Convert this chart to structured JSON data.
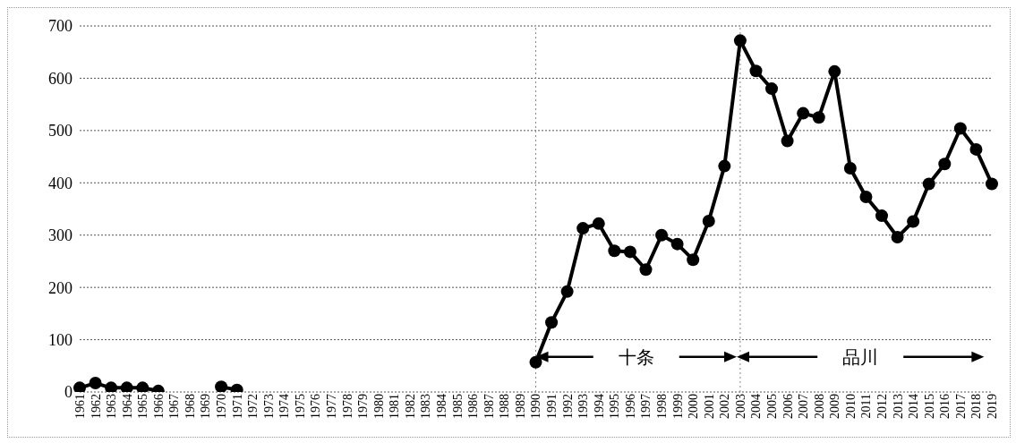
{
  "chart_data": {
    "type": "line",
    "categories": [
      "1961",
      "1962",
      "1963",
      "1964",
      "1965",
      "1966",
      "1967",
      "1968",
      "1969",
      "1970",
      "1971",
      "1972",
      "1973",
      "1974",
      "1975",
      "1976",
      "1977",
      "1978",
      "1979",
      "1980",
      "1981",
      "1982",
      "1983",
      "1984",
      "1985",
      "1986",
      "1987",
      "1988",
      "1989",
      "1990",
      "1991",
      "1992",
      "1993",
      "1994",
      "1995",
      "1996",
      "1997",
      "1998",
      "1999",
      "2000",
      "2001",
      "2002",
      "2003",
      "2004",
      "2005",
      "2006",
      "2007",
      "2008",
      "2009",
      "2010",
      "2011",
      "2012",
      "2013",
      "2014",
      "2015",
      "2016",
      "2017",
      "2018",
      "2019"
    ],
    "series": [
      {
        "color": "#000000",
        "values": [
          8,
          17,
          8,
          8,
          8,
          2,
          null,
          null,
          null,
          10,
          4,
          null,
          null,
          null,
          null,
          null,
          null,
          null,
          null,
          null,
          null,
          null,
          null,
          null,
          null,
          null,
          null,
          null,
          null,
          57,
          133,
          192,
          313,
          322,
          270,
          268,
          234,
          300,
          283,
          253,
          327,
          432,
          672,
          614,
          580,
          480,
          533,
          525,
          613,
          428,
          373,
          337,
          296,
          326,
          398,
          436,
          504,
          464,
          398
        ]
      }
    ],
    "ylim": [
      0,
      700
    ],
    "yticks": [
      0,
      100,
      200,
      300,
      400,
      500,
      600,
      700
    ],
    "grid": "y",
    "legend": false,
    "marker": "circle",
    "line_style": "solid",
    "ref_lines": [
      {
        "axis": "x",
        "value": "1990",
        "color": "#888888",
        "line_style": "dotted"
      },
      {
        "axis": "x",
        "value": "2003",
        "color": "#888888",
        "line_style": "dotted"
      }
    ],
    "annotations": [
      "十条",
      "品川"
    ]
  }
}
